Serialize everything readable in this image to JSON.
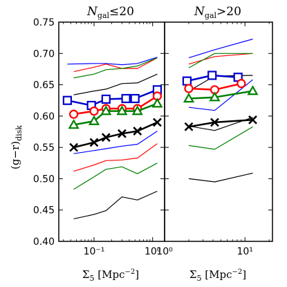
{
  "figure": {
    "ylabel": "(g−r)",
    "ylabel_sub": "disk",
    "xlabel": "Σ",
    "xlabel_sub": "5",
    "xlabel_unit": " [Mpc",
    "xlabel_exp": "−2",
    "xlabel_close": "]"
  },
  "chart_data": [
    {
      "type": "line",
      "panel": "left",
      "title_prefix": "N",
      "title_sub": "gal",
      "title_suffix": "≤20",
      "xscale": "log",
      "xlim": [
        0.025,
        1.6
      ],
      "ylim": [
        0.4,
        0.75
      ],
      "xticks": [
        0.1,
        1
      ],
      "xtick_labels": [
        "10⁻¹",
        "10⁰"
      ],
      "yticks": [
        0.4,
        0.45,
        0.5,
        0.55,
        0.6,
        0.65,
        0.7,
        0.75
      ],
      "ytick_labels": [
        "0.40",
        "0.45",
        "0.50",
        "0.55",
        "0.60",
        "0.65",
        "0.70",
        "0.75"
      ],
      "x": [
        0.045,
        0.1,
        0.18,
        0.35,
        0.6,
        1.2
      ],
      "series": [
        {
          "color": "#0000cc",
          "marker": "square",
          "markers": true,
          "width": 2.5,
          "x": [
            0.035,
            0.09,
            0.16,
            0.35,
            0.5,
            1.2
          ],
          "values": [
            0.625,
            0.617,
            0.627,
            0.628,
            0.628,
            0.642
          ]
        },
        {
          "color": "#ff0000",
          "marker": "circle",
          "markers": true,
          "width": 2.5,
          "x": [
            0.045,
            0.1,
            0.16,
            0.3,
            0.55,
            1.2
          ],
          "values": [
            0.603,
            0.608,
            0.612,
            0.612,
            0.612,
            0.632
          ]
        },
        {
          "color": "#008000",
          "marker": "triangle",
          "markers": true,
          "width": 2.5,
          "x": [
            0.045,
            0.1,
            0.16,
            0.3,
            0.55,
            1.2
          ],
          "values": [
            0.586,
            0.592,
            0.608,
            0.608,
            0.608,
            0.62
          ]
        },
        {
          "color": "#000000",
          "marker": "x",
          "markers": true,
          "width": 2.5,
          "x": [
            0.045,
            0.1,
            0.16,
            0.3,
            0.55,
            1.2
          ],
          "values": [
            0.55,
            0.558,
            0.566,
            0.572,
            0.576,
            0.59
          ]
        },
        {
          "color": "#0000ff",
          "markers": false,
          "width": 1.2,
          "x": [
            0.035,
            0.1,
            0.16,
            0.3,
            0.55,
            1.2
          ],
          "values": [
            0.683,
            0.684,
            0.684,
            0.682,
            0.684,
            0.694
          ]
        },
        {
          "color": "#ff0000",
          "markers": false,
          "width": 1.2,
          "x": [
            0.045,
            0.1,
            0.16,
            0.3,
            0.55,
            1.2
          ],
          "values": [
            0.671,
            0.678,
            0.683,
            0.676,
            0.676,
            0.693
          ]
        },
        {
          "color": "#008000",
          "markers": false,
          "width": 1.2,
          "x": [
            0.045,
            0.1,
            0.16,
            0.3,
            0.55,
            1.2
          ],
          "values": [
            0.661,
            0.667,
            0.674,
            0.676,
            0.68,
            0.693
          ]
        },
        {
          "color": "#000000",
          "markers": false,
          "width": 1.2,
          "x": [
            0.045,
            0.1,
            0.16,
            0.3,
            0.55,
            1.2
          ],
          "values": [
            0.634,
            0.64,
            0.643,
            0.652,
            0.653,
            0.667
          ]
        },
        {
          "color": "#0000ff",
          "markers": false,
          "width": 1.2,
          "x": [
            0.045,
            0.1,
            0.16,
            0.3,
            0.55,
            1.2
          ],
          "values": [
            0.54,
            0.545,
            0.548,
            0.552,
            0.555,
            0.576
          ]
        },
        {
          "color": "#ff0000",
          "markers": false,
          "width": 1.2,
          "x": [
            0.045,
            0.1,
            0.16,
            0.3,
            0.55,
            1.2
          ],
          "values": [
            0.512,
            0.522,
            0.529,
            0.53,
            0.533,
            0.556
          ]
        },
        {
          "color": "#008000",
          "markers": false,
          "width": 1.2,
          "x": [
            0.045,
            0.1,
            0.16,
            0.3,
            0.55,
            1.2
          ],
          "values": [
            0.483,
            0.503,
            0.515,
            0.519,
            0.508,
            0.525
          ]
        },
        {
          "color": "#000000",
          "markers": false,
          "width": 1.2,
          "x": [
            0.045,
            0.1,
            0.16,
            0.3,
            0.55,
            1.2
          ],
          "values": [
            0.436,
            0.443,
            0.449,
            0.471,
            0.466,
            0.48
          ]
        }
      ]
    },
    {
      "type": "line",
      "panel": "right",
      "title_prefix": "N",
      "title_sub": "gal",
      "title_suffix": ">20",
      "xscale": "log",
      "xlim": [
        1,
        22
      ],
      "ylim": [
        0.4,
        0.75
      ],
      "xticks": [
        1,
        10
      ],
      "xtick_labels": [
        "10⁰",
        "10¹"
      ],
      "series": [
        {
          "color": "#0000cc",
          "marker": "square",
          "markers": true,
          "width": 2.5,
          "x": [
            1.9,
            3.9,
            8.2
          ],
          "values": [
            0.656,
            0.665,
            0.662
          ]
        },
        {
          "color": "#ff0000",
          "marker": "circle",
          "markers": true,
          "width": 2.5,
          "x": [
            2.0,
            4.2,
            9.0
          ],
          "values": [
            0.644,
            0.642,
            0.652
          ]
        },
        {
          "color": "#008000",
          "marker": "triangle",
          "markers": true,
          "width": 2.5,
          "x": [
            2.0,
            4.2,
            12.5
          ],
          "values": [
            0.628,
            0.63,
            0.64
          ]
        },
        {
          "color": "#000000",
          "marker": "x",
          "markers": true,
          "width": 2.5,
          "x": [
            2.0,
            4.2,
            12.5
          ],
          "values": [
            0.583,
            0.59,
            0.594
          ]
        },
        {
          "color": "#0000ff",
          "markers": false,
          "width": 1.2,
          "x": [
            2.0,
            4.2,
            12.5
          ],
          "values": [
            0.693,
            0.706,
            0.723
          ]
        },
        {
          "color": "#ff0000",
          "markers": false,
          "width": 1.2,
          "x": [
            2.0,
            4.2,
            12.5
          ],
          "values": [
            0.683,
            0.695,
            0.7
          ]
        },
        {
          "color": "#008000",
          "markers": false,
          "width": 1.2,
          "x": [
            2.0,
            4.2,
            12.5
          ],
          "values": [
            0.677,
            0.7,
            0.7
          ]
        },
        {
          "color": "#000000",
          "markers": false,
          "width": 1.2,
          "x": [
            2.0,
            4.2,
            12.5
          ],
          "values": [
            0.64,
            0.664,
            0.665
          ]
        },
        {
          "color": "#0000ff",
          "markers": false,
          "width": 1.2,
          "x": [
            2.0,
            4.2,
            12.5
          ],
          "values": [
            0.614,
            0.609,
            0.658
          ]
        },
        {
          "color": "#000000",
          "markers": false,
          "width": 1.2,
          "x": [
            2.0,
            4.2,
            12.5
          ],
          "values": [
            0.584,
            0.577,
            0.598
          ]
        },
        {
          "color": "#008000",
          "markers": false,
          "width": 1.2,
          "x": [
            2.0,
            4.2,
            12.5
          ],
          "values": [
            0.553,
            0.547,
            0.583
          ]
        },
        {
          "color": "#000000",
          "markers": false,
          "width": 1.2,
          "x": [
            2.0,
            4.2,
            12.5
          ],
          "values": [
            0.5,
            0.495,
            0.509
          ]
        }
      ]
    }
  ]
}
